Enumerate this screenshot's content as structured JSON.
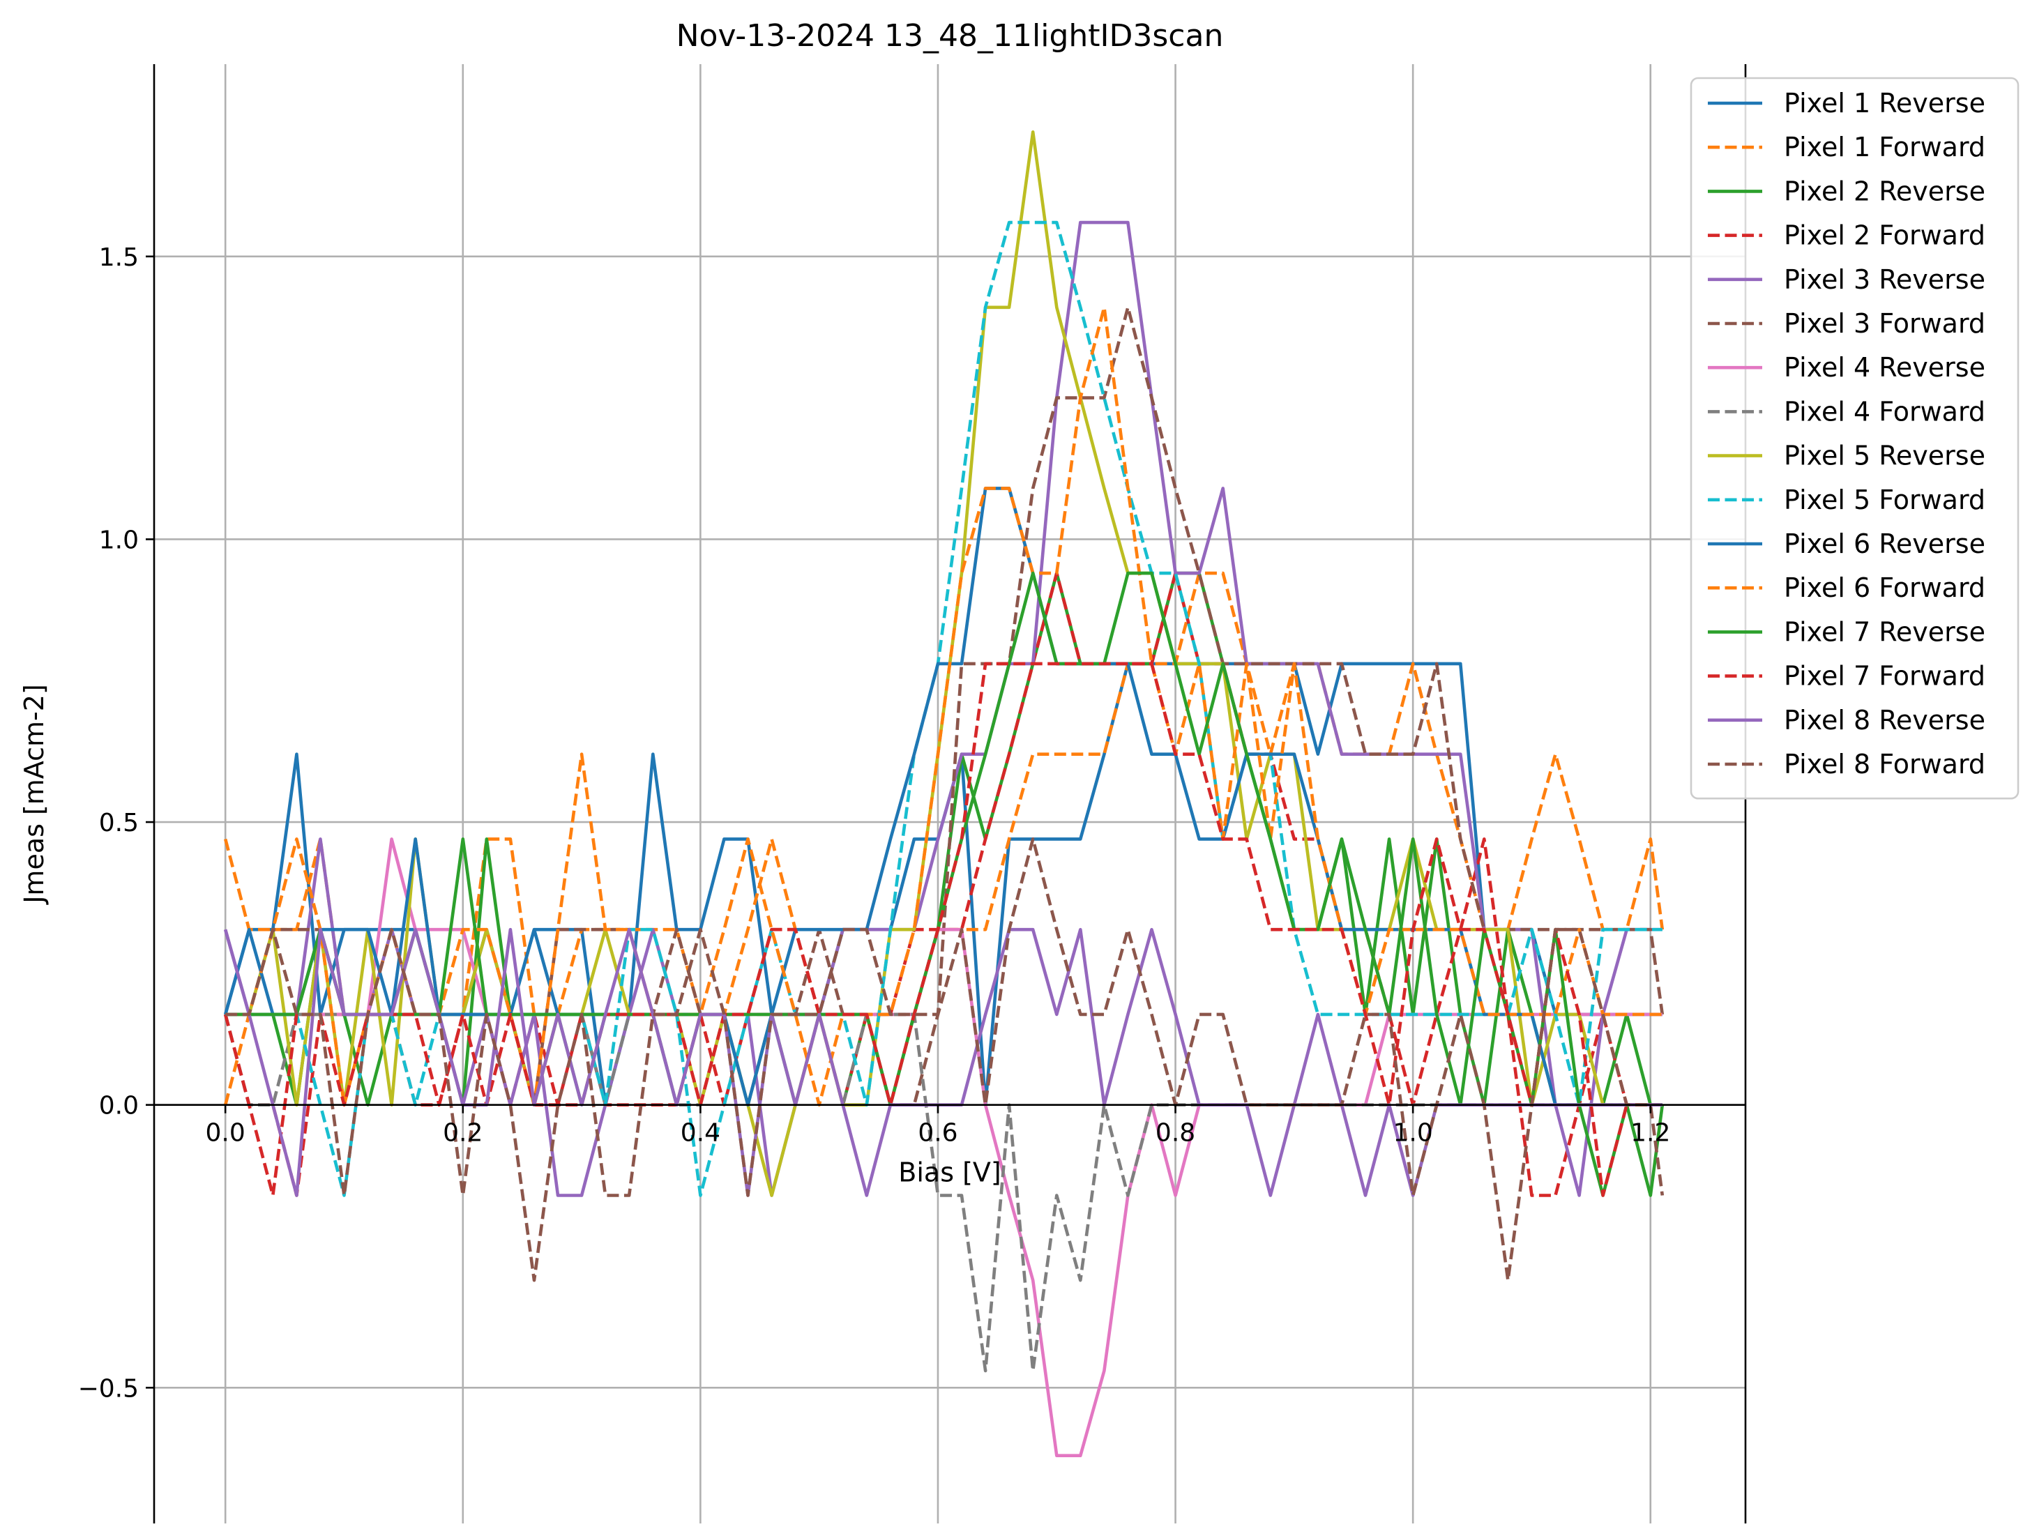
{
  "chart_data": {
    "type": "line",
    "title": "Nov-13-2024 13_48_11lightID3scan",
    "xlabel": "Bias [V]",
    "ylabel": "Jmeas [mAcm-2]",
    "xlim": [
      -0.06,
      1.28
    ],
    "ylim": [
      -0.74,
      1.84
    ],
    "xticks": [
      0.0,
      0.2,
      0.4,
      0.6,
      0.8,
      1.0,
      1.2
    ],
    "xtick_labels": [
      "0.0",
      "0.2",
      "0.4",
      "0.6",
      "0.8",
      "1.0",
      "1.2"
    ],
    "yticks": [
      -0.5,
      0.0,
      0.5,
      1.0,
      1.5
    ],
    "ytick_labels": [
      "−0.5",
      "0.0",
      "0.5",
      "1.0",
      "1.5"
    ],
    "grid": true,
    "legend_position": "top-right",
    "x": [
      0.0,
      0.02,
      0.04,
      0.06,
      0.08,
      0.1,
      0.12,
      0.14,
      0.16,
      0.18,
      0.2,
      0.22,
      0.24,
      0.26,
      0.28,
      0.3,
      0.32,
      0.34,
      0.36,
      0.38,
      0.4,
      0.42,
      0.44,
      0.46,
      0.48,
      0.5,
      0.52,
      0.54,
      0.56,
      0.58,
      0.6,
      0.62,
      0.64,
      0.66,
      0.68,
      0.7,
      0.72,
      0.74,
      0.76,
      0.78,
      0.8,
      0.82,
      0.84,
      0.86,
      0.88,
      0.9,
      0.92,
      0.94,
      0.96,
      0.98,
      1.0,
      1.02,
      1.04,
      1.06,
      1.08,
      1.1,
      1.12,
      1.14,
      1.16,
      1.18,
      1.2,
      1.21
    ],
    "series": [
      {
        "name": "Pixel 1 Reverse",
        "color": "#1f77b4",
        "dash": "solid",
        "values": [
          0.16,
          0.31,
          0.31,
          0.62,
          0.16,
          0.31,
          0.31,
          0.31,
          0.31,
          0.16,
          0.16,
          0.31,
          0.16,
          0.31,
          0.31,
          0.31,
          0.0,
          0.16,
          0.62,
          0.31,
          0.31,
          0.47,
          0.47,
          0.16,
          0.16,
          0.16,
          0.31,
          0.31,
          0.31,
          0.47,
          0.47,
          0.62,
          0.0,
          0.47,
          0.47,
          0.47,
          0.47,
          0.62,
          0.78,
          0.78,
          0.78,
          0.78,
          0.78,
          0.78,
          0.78,
          0.78,
          0.62,
          0.78,
          0.78,
          0.78,
          0.78,
          0.78,
          0.78,
          0.31,
          0.31,
          0.31,
          0.16,
          0.16,
          0.16,
          0.16,
          0.16,
          0.16
        ]
      },
      {
        "name": "Pixel 1 Forward",
        "color": "#ff7f0e",
        "dash": "dashed",
        "values": [
          0.47,
          0.31,
          0.31,
          0.31,
          0.47,
          0.16,
          0.16,
          0.16,
          0.31,
          0.16,
          0.16,
          0.47,
          0.47,
          0.16,
          0.16,
          0.31,
          0.31,
          0.31,
          0.31,
          0.31,
          0.16,
          0.16,
          0.31,
          0.47,
          0.31,
          0.16,
          0.16,
          0.16,
          0.16,
          0.16,
          0.31,
          0.31,
          0.31,
          0.47,
          0.62,
          0.62,
          0.62,
          0.62,
          0.78,
          0.78,
          0.78,
          0.94,
          0.94,
          0.78,
          0.62,
          0.78,
          0.78,
          0.62,
          0.62,
          0.62,
          0.78,
          0.62,
          0.47,
          0.31,
          0.31,
          0.47,
          0.62,
          0.47,
          0.31,
          0.31,
          0.47,
          0.31
        ]
      },
      {
        "name": "Pixel 2 Reverse",
        "color": "#2ca02c",
        "dash": "solid",
        "values": [
          0.16,
          0.16,
          0.16,
          0.0,
          0.31,
          0.16,
          0.0,
          0.16,
          0.31,
          0.16,
          0.0,
          0.47,
          0.16,
          0.0,
          0.16,
          0.0,
          0.16,
          0.16,
          0.16,
          0.0,
          0.16,
          0.16,
          0.0,
          0.16,
          0.0,
          0.16,
          0.0,
          0.16,
          0.0,
          0.16,
          0.31,
          0.62,
          0.47,
          0.62,
          0.78,
          0.94,
          0.78,
          0.78,
          0.78,
          0.78,
          0.94,
          0.94,
          0.78,
          0.62,
          0.47,
          0.31,
          0.31,
          0.47,
          0.16,
          0.47,
          0.16,
          0.47,
          0.16,
          0.0,
          0.31,
          0.16,
          0.0,
          0.0,
          0.0,
          0.16,
          0.0,
          0.0
        ]
      },
      {
        "name": "Pixel 2 Forward",
        "color": "#d62728",
        "dash": "dashed",
        "values": [
          0.16,
          0.0,
          0.0,
          -0.16,
          0.16,
          0.16,
          0.16,
          0.16,
          0.0,
          0.0,
          0.16,
          0.16,
          0.0,
          0.16,
          0.0,
          0.16,
          0.0,
          0.0,
          0.0,
          0.0,
          0.16,
          0.0,
          0.16,
          0.31,
          0.31,
          0.16,
          0.0,
          0.16,
          0.16,
          0.31,
          0.31,
          0.31,
          0.47,
          0.62,
          0.78,
          0.94,
          0.78,
          0.78,
          0.78,
          0.78,
          0.94,
          0.78,
          0.78,
          0.62,
          0.62,
          0.47,
          0.47,
          0.31,
          0.31,
          0.16,
          0.0,
          0.16,
          0.31,
          0.47,
          0.16,
          -0.16,
          -0.16,
          0.0,
          0.16,
          0.0,
          0.0,
          0.0
        ]
      },
      {
        "name": "Pixel 3 Reverse",
        "color": "#9467bd",
        "dash": "solid",
        "values": [
          0.31,
          0.16,
          0.16,
          0.16,
          0.47,
          0.16,
          0.16,
          0.31,
          0.16,
          0.16,
          0.0,
          0.16,
          0.0,
          0.16,
          -0.16,
          -0.16,
          0.0,
          0.16,
          0.31,
          0.16,
          0.16,
          0.16,
          0.16,
          -0.16,
          0.0,
          0.16,
          0.31,
          0.31,
          0.31,
          0.31,
          0.47,
          0.62,
          0.62,
          0.78,
          0.78,
          1.25,
          1.56,
          1.56,
          1.56,
          1.25,
          0.94,
          0.94,
          1.09,
          0.78,
          0.78,
          0.78,
          0.78,
          0.62,
          0.62,
          0.62,
          0.62,
          0.62,
          0.62,
          0.31,
          0.31,
          0.31,
          0.0,
          -0.16,
          0.16,
          0.31,
          0.31,
          0.31
        ]
      },
      {
        "name": "Pixel 3 Forward",
        "color": "#8c564b",
        "dash": "dashed",
        "values": [
          0.16,
          0.16,
          0.31,
          0.31,
          0.31,
          0.16,
          0.16,
          0.16,
          0.16,
          0.16,
          0.16,
          0.16,
          0.16,
          0.0,
          0.31,
          0.31,
          0.31,
          0.31,
          0.16,
          0.31,
          0.16,
          0.16,
          0.16,
          0.16,
          0.16,
          0.31,
          0.16,
          0.16,
          0.0,
          0.0,
          0.16,
          0.78,
          0.78,
          0.78,
          1.09,
          1.25,
          1.25,
          1.25,
          1.41,
          1.25,
          1.09,
          0.94,
          0.78,
          0.78,
          0.78,
          0.78,
          0.78,
          0.78,
          0.62,
          0.62,
          0.62,
          0.78,
          0.47,
          0.31,
          0.31,
          0.31,
          0.31,
          0.31,
          0.31,
          0.31,
          0.31,
          0.16
        ]
      },
      {
        "name": "Pixel 4 Reverse",
        "color": "#e377c2",
        "dash": "solid",
        "values": [
          0.16,
          0.16,
          0.16,
          0.16,
          0.16,
          0.16,
          0.16,
          0.47,
          0.31,
          0.31,
          0.31,
          0.16,
          0.16,
          0.16,
          0.16,
          0.16,
          0.16,
          0.16,
          0.16,
          0.16,
          0.16,
          0.16,
          0.16,
          0.16,
          0.16,
          0.16,
          0.16,
          0.16,
          0.16,
          0.16,
          0.31,
          0.31,
          0.0,
          -0.16,
          -0.31,
          -0.62,
          -0.62,
          -0.47,
          -0.16,
          0.0,
          -0.16,
          0.0,
          0.0,
          0.0,
          0.0,
          0.0,
          0.0,
          0.0,
          0.0,
          0.16,
          0.16,
          0.16,
          0.16,
          0.16,
          0.16,
          0.16,
          0.16,
          0.16,
          0.16,
          0.16,
          0.16,
          0.16
        ]
      },
      {
        "name": "Pixel 4 Forward",
        "color": "#7f7f7f",
        "dash": "dashed",
        "values": [
          0.16,
          0.0,
          0.0,
          0.16,
          0.16,
          0.16,
          0.16,
          0.16,
          0.16,
          0.16,
          0.16,
          0.16,
          0.16,
          0.16,
          0.16,
          0.16,
          0.0,
          0.16,
          0.16,
          0.0,
          0.0,
          0.16,
          0.0,
          0.16,
          0.16,
          0.16,
          0.0,
          0.16,
          0.16,
          0.16,
          -0.16,
          -0.16,
          -0.47,
          0.0,
          -0.47,
          -0.16,
          -0.31,
          0.0,
          -0.16,
          0.0,
          0.0,
          0.0,
          0.0,
          0.0,
          0.0,
          0.0,
          0.0,
          0.0,
          0.0,
          0.0,
          0.0,
          0.0,
          0.0,
          0.0,
          0.0,
          0.0,
          0.0,
          0.0,
          0.0,
          0.0,
          0.0,
          0.0
        ]
      },
      {
        "name": "Pixel 5 Reverse",
        "color": "#bcbd22",
        "dash": "solid",
        "values": [
          0.16,
          0.16,
          0.31,
          0.0,
          0.31,
          0.0,
          0.31,
          0.0,
          0.47,
          0.16,
          0.16,
          0.31,
          0.16,
          0.0,
          0.16,
          0.16,
          0.31,
          0.16,
          0.16,
          0.16,
          0.0,
          0.16,
          0.0,
          -0.16,
          0.0,
          0.16,
          0.0,
          0.0,
          0.31,
          0.31,
          0.62,
          0.94,
          1.41,
          1.41,
          1.72,
          1.41,
          1.25,
          1.09,
          0.94,
          0.94,
          0.78,
          0.78,
          0.78,
          0.47,
          0.62,
          0.62,
          0.31,
          0.31,
          0.31,
          0.31,
          0.47,
          0.31,
          0.31,
          0.31,
          0.31,
          0.0,
          0.16,
          0.16,
          0.0,
          0.0,
          0.0,
          0.0
        ]
      },
      {
        "name": "Pixel 5 Forward",
        "color": "#17becf",
        "dash": "dashed",
        "values": [
          0.16,
          0.16,
          0.16,
          0.16,
          0.0,
          -0.16,
          0.16,
          0.16,
          0.0,
          0.16,
          0.16,
          0.16,
          0.16,
          0.16,
          0.16,
          0.16,
          0.0,
          0.31,
          0.31,
          0.16,
          -0.16,
          0.0,
          0.16,
          0.31,
          0.16,
          0.16,
          0.16,
          0.0,
          0.31,
          0.62,
          0.78,
          1.09,
          1.41,
          1.56,
          1.56,
          1.56,
          1.41,
          1.25,
          1.09,
          0.94,
          0.94,
          0.78,
          0.47,
          0.62,
          0.62,
          0.31,
          0.16,
          0.16,
          0.16,
          0.16,
          0.16,
          0.16,
          0.16,
          0.16,
          0.16,
          0.31,
          0.16,
          0.0,
          0.31,
          0.31,
          0.31,
          0.31
        ]
      },
      {
        "name": "Pixel 6 Reverse",
        "color": "#1f77b4",
        "dash": "solid",
        "values": [
          0.16,
          0.31,
          0.16,
          0.16,
          0.31,
          0.31,
          0.31,
          0.16,
          0.47,
          0.16,
          0.16,
          0.16,
          0.16,
          0.31,
          0.16,
          0.16,
          0.16,
          0.16,
          0.16,
          0.16,
          0.16,
          0.16,
          0.0,
          0.16,
          0.31,
          0.31,
          0.31,
          0.31,
          0.47,
          0.62,
          0.78,
          0.78,
          1.09,
          1.09,
          0.94,
          0.78,
          0.78,
          0.78,
          0.78,
          0.62,
          0.62,
          0.47,
          0.47,
          0.62,
          0.62,
          0.62,
          0.47,
          0.31,
          0.31,
          0.31,
          0.31,
          0.31,
          0.31,
          0.16,
          0.16,
          0.16,
          0.0,
          0.0,
          0.0,
          0.0,
          0.0,
          0.0
        ]
      },
      {
        "name": "Pixel 6 Forward",
        "color": "#ff7f0e",
        "dash": "dashed",
        "values": [
          0.0,
          0.16,
          0.31,
          0.47,
          0.31,
          0.0,
          0.16,
          0.31,
          0.16,
          0.16,
          0.31,
          0.31,
          0.16,
          0.0,
          0.31,
          0.62,
          0.31,
          0.31,
          0.16,
          0.16,
          0.16,
          0.31,
          0.47,
          0.31,
          0.16,
          0.0,
          0.16,
          0.16,
          0.16,
          0.31,
          0.62,
          0.94,
          1.09,
          1.09,
          0.94,
          0.94,
          1.25,
          1.41,
          1.09,
          0.78,
          0.62,
          0.78,
          0.47,
          0.78,
          0.47,
          0.78,
          0.47,
          0.31,
          0.16,
          0.31,
          0.31,
          0.31,
          0.31,
          0.16,
          0.16,
          0.16,
          0.16,
          0.31,
          0.16,
          0.16,
          0.16,
          0.16
        ]
      },
      {
        "name": "Pixel 7 Reverse",
        "color": "#2ca02c",
        "dash": "solid",
        "values": [
          0.16,
          0.16,
          0.16,
          0.16,
          0.31,
          0.16,
          0.16,
          0.16,
          0.16,
          0.16,
          0.47,
          0.16,
          0.16,
          0.16,
          0.16,
          0.16,
          0.16,
          0.16,
          0.16,
          0.16,
          0.16,
          0.16,
          0.16,
          0.16,
          0.16,
          0.16,
          0.16,
          0.16,
          0.0,
          0.16,
          0.31,
          0.47,
          0.62,
          0.78,
          0.94,
          0.78,
          0.78,
          0.78,
          0.94,
          0.94,
          0.78,
          0.62,
          0.78,
          0.62,
          0.47,
          0.31,
          0.31,
          0.47,
          0.31,
          0.16,
          0.47,
          0.16,
          0.0,
          0.31,
          0.16,
          0.0,
          0.31,
          0.0,
          -0.16,
          0.0,
          -0.16,
          0.0
        ]
      },
      {
        "name": "Pixel 7 Forward",
        "color": "#d62728",
        "dash": "dashed",
        "values": [
          0.16,
          0.0,
          -0.16,
          0.16,
          0.16,
          0.0,
          0.16,
          0.16,
          0.16,
          0.0,
          0.16,
          0.0,
          0.16,
          0.0,
          0.0,
          0.0,
          0.16,
          0.16,
          0.16,
          0.16,
          0.0,
          0.16,
          0.16,
          0.31,
          0.31,
          0.16,
          0.16,
          0.16,
          0.0,
          0.16,
          0.31,
          0.47,
          0.78,
          0.78,
          0.78,
          0.78,
          0.78,
          0.78,
          0.78,
          0.78,
          0.62,
          0.62,
          0.47,
          0.47,
          0.31,
          0.31,
          0.31,
          0.31,
          0.16,
          0.0,
          0.31,
          0.47,
          0.31,
          0.31,
          0.16,
          0.0,
          0.31,
          0.16,
          -0.16,
          0.0,
          0.0,
          0.0
        ]
      },
      {
        "name": "Pixel 8 Reverse",
        "color": "#9467bd",
        "dash": "solid",
        "values": [
          0.31,
          0.16,
          0.0,
          -0.16,
          0.31,
          0.16,
          0.16,
          0.16,
          0.31,
          0.16,
          0.0,
          0.0,
          0.31,
          0.0,
          0.16,
          0.0,
          0.16,
          0.31,
          0.16,
          0.0,
          0.16,
          0.16,
          -0.16,
          0.16,
          0.0,
          0.16,
          0.0,
          -0.16,
          0.0,
          0.0,
          0.0,
          0.0,
          0.16,
          0.31,
          0.31,
          0.16,
          0.31,
          0.0,
          0.16,
          0.31,
          0.16,
          0.0,
          0.0,
          0.0,
          -0.16,
          0.0,
          0.16,
          0.0,
          -0.16,
          0.0,
          -0.16,
          0.0,
          0.0,
          0.0,
          0.0,
          0.0,
          0.0,
          0.0,
          0.0,
          0.0,
          0.0,
          0.0
        ]
      },
      {
        "name": "Pixel 8 Forward",
        "color": "#8c564b",
        "dash": "dashed",
        "values": [
          0.16,
          0.16,
          0.31,
          0.16,
          0.16,
          -0.16,
          0.16,
          0.31,
          0.16,
          0.16,
          -0.16,
          0.16,
          0.0,
          -0.31,
          0.0,
          0.16,
          -0.16,
          -0.16,
          0.16,
          0.16,
          0.31,
          0.16,
          -0.16,
          0.16,
          0.16,
          0.16,
          0.31,
          0.31,
          0.16,
          0.16,
          0.16,
          0.31,
          0.0,
          0.31,
          0.47,
          0.31,
          0.16,
          0.16,
          0.31,
          0.16,
          0.0,
          0.16,
          0.16,
          0.0,
          0.0,
          0.0,
          0.0,
          0.0,
          0.16,
          0.16,
          -0.16,
          0.0,
          0.16,
          0.0,
          -0.31,
          0.0,
          0.31,
          0.31,
          0.16,
          0.0,
          0.0,
          -0.16
        ]
      }
    ]
  }
}
